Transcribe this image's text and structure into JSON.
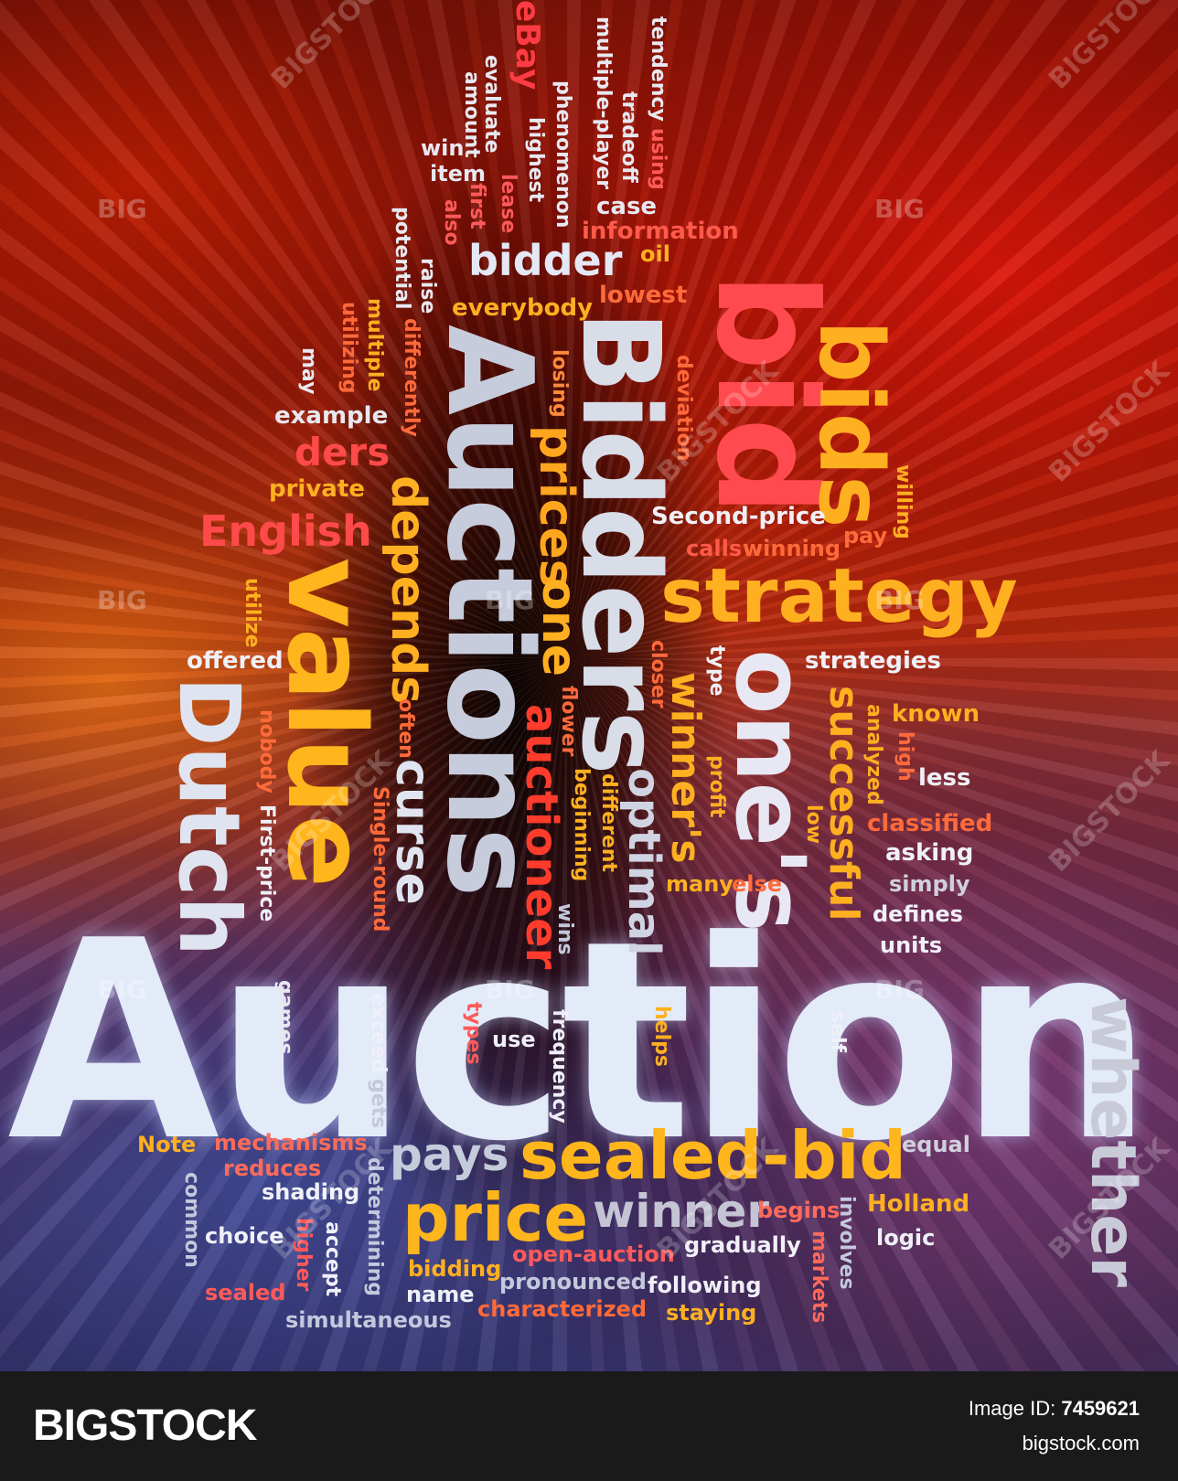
{
  "words": {
    "auction": "Auction",
    "auctions": "Auctions",
    "bidders": "Bidders",
    "bid": "bid",
    "bids": "bids",
    "strategy": "strategy",
    "value": "value",
    "dutch": "Dutch",
    "ones": "one's",
    "sealed_bid": "sealed-bid",
    "price": "price",
    "winner": "winner",
    "pays": "pays",
    "whether": "whether",
    "bidder": "bidder",
    "english": "English",
    "ders": "ders",
    "depends": "depends",
    "prices": "prices",
    "one": "one",
    "curse": "curse",
    "auctioneer": "auctioneer",
    "optimal": "optimal",
    "winners": "winner's",
    "successful": "successful",
    "ebay": "eBay",
    "evaluate": "evaluate",
    "amount": "amount",
    "highest": "highest",
    "phenomenon": "phenomenon",
    "multiple_player": "multiple-player",
    "tradeoff": "tradeoff",
    "case": "case",
    "tendency": "tendency",
    "using": "using",
    "win": "win",
    "item": "item",
    "lease": "lease",
    "first": "first",
    "also": "also",
    "information": "information",
    "oil": "oil",
    "potential": "potential",
    "raise": "raise",
    "lowest": "lowest",
    "everybody": "everybody",
    "multiple": "multiple",
    "utilizing": "utilizing",
    "differently": "differently",
    "may": "may",
    "losing": "losing",
    "deviation": "deviation",
    "example": "example",
    "private": "private",
    "second_price": "Second-price",
    "willing": "willing",
    "pay": "pay",
    "calls": "calls",
    "winning": "winning",
    "utilize": "utilize",
    "offered": "offered",
    "closer": "closer",
    "type": "type",
    "strategies": "strategies",
    "flower": "flower",
    "often": "often",
    "nobody": "nobody",
    "known": "known",
    "analyzed": "analyzed",
    "high": "high",
    "less": "less",
    "profit": "profit",
    "beginning": "beginning",
    "different": "different",
    "low": "low",
    "classified": "classified",
    "asking": "asking",
    "first_price": "First-price",
    "single_round": "Single-round",
    "many": "many",
    "else": "else",
    "simply": "simply",
    "defines": "defines",
    "wins": "wins",
    "units": "units",
    "games": "games",
    "exceed": "exceed",
    "gets": "gets",
    "types": "types",
    "use": "use",
    "frequency": "frequency",
    "helps": "helps",
    "self": "self",
    "note": "Note",
    "mechanisms": "mechanisms",
    "reduces": "reduces",
    "shading": "shading",
    "equal": "equal",
    "holland": "Holland",
    "begins": "begins",
    "involves": "involves",
    "common": "common",
    "choice": "choice",
    "higher": "higher",
    "accept": "accept",
    "determining": "determining",
    "open_auction": "open-auction",
    "gradually": "gradually",
    "markets": "markets",
    "logic": "logic",
    "bidding": "bidding",
    "pronounced": "pronounced",
    "following": "following",
    "sealed": "sealed",
    "name": "name",
    "characterized": "characterized",
    "staying": "staying",
    "simultaneous": "simultaneous"
  },
  "watermarks": {
    "big": "BIG",
    "bigstock": "BIGSTOCK"
  },
  "footer": {
    "logo": "BIGSTOCK",
    "image_id_label": "Image ID:",
    "image_id": "7459621",
    "site": "bigstock.com"
  },
  "colors": {
    "footer_bg": "#1a1a1a",
    "big_word": "#dfe6f7",
    "orange": "#ffb020",
    "red": "#ff4a4a",
    "white": "#ffffff"
  }
}
